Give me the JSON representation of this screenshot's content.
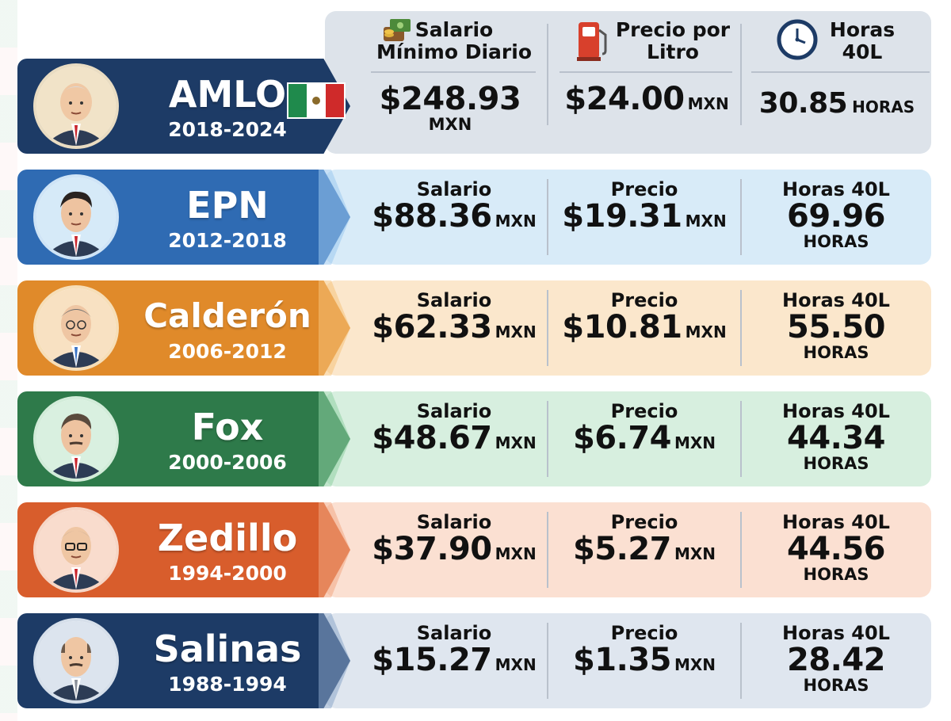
{
  "header": {
    "col1_label": "Salario Mínimo Diario",
    "col2_label": "Precio por Litro",
    "col3_label": "Horas 40L",
    "col1_icon": "money-bag-icon",
    "col2_icon": "fuel-pump-icon",
    "col3_icon": "clock-icon"
  },
  "rows": [
    {
      "name": "AMLO",
      "years": "2018-2024",
      "salario_value": "$248.93",
      "salario_unit": "MXN",
      "precio_value": "$24.00",
      "precio_unit": "MXN",
      "horas_value": "30.85",
      "horas_unit": "HORAS",
      "color": "#1d3b66"
    },
    {
      "name": "EPN",
      "years": "2012-2018",
      "salario_label": "Salario",
      "salario_value": "$88.36",
      "salario_unit": "MXN",
      "precio_label": "Precio",
      "precio_value": "$19.31",
      "precio_unit": "MXN",
      "horas_label": "Horas 40L",
      "horas_value": "69.96",
      "horas_unit": "HORAS",
      "color": "#2f6bb3"
    },
    {
      "name": "Calderón",
      "years": "2006-2012",
      "salario_label": "Salario",
      "salario_value": "$62.33",
      "salario_unit": "MXN",
      "precio_label": "Precio",
      "precio_value": "$10.81",
      "precio_unit": "MXN",
      "horas_label": "Horas 40L",
      "horas_value": "55.50",
      "horas_unit": "HORAS",
      "color": "#e08a2a"
    },
    {
      "name": "Fox",
      "years": "2000-2006",
      "salario_label": "Salario",
      "salario_value": "$48.67",
      "salario_unit": "MXN",
      "precio_label": "Precio",
      "precio_value": "$6.74",
      "precio_unit": "MXN",
      "horas_label": "Horas 40L",
      "horas_value": "44.34",
      "horas_unit": "HORAS",
      "color": "#2e7a4a"
    },
    {
      "name": "Zedillo",
      "years": "1994-2000",
      "salario_label": "Salario",
      "salario_value": "$37.90",
      "salario_unit": "MXN",
      "precio_label": "Precio",
      "precio_value": "$5.27",
      "precio_unit": "MXN",
      "horas_label": "Horas 40L",
      "horas_value": "44.56",
      "horas_unit": "HORAS",
      "color": "#d85d2c"
    },
    {
      "name": "Salinas",
      "years": "1988-1994",
      "salario_label": "Salario",
      "salario_value": "$15.27",
      "salario_unit": "MXN",
      "precio_label": "Precio",
      "precio_value": "$1.35",
      "precio_unit": "MXN",
      "horas_label": "Horas 40L",
      "horas_value": "28.42",
      "horas_unit": "HORAS",
      "color": "#1d3b66"
    }
  ],
  "colors": {
    "amlo_panel": "#dde3ea",
    "epn_panel": "#d8ebf8",
    "calderon_panel": "#fbe7cc",
    "fox_panel": "#d7efdf",
    "zedillo_panel": "#fbe0d2",
    "salinas_panel": "#dfe6ef",
    "flag_green": "#1f8a4c",
    "flag_white": "#ffffff",
    "flag_red": "#cf2a2a"
  }
}
